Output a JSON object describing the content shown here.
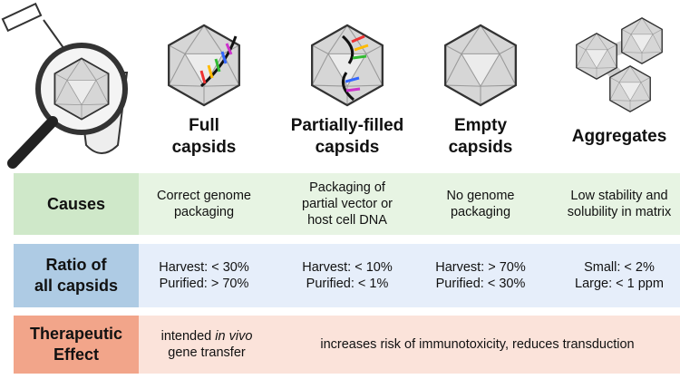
{
  "columns": [
    {
      "title": [
        "Full",
        "capsids"
      ]
    },
    {
      "title": [
        "Partially-filled",
        "capsids"
      ]
    },
    {
      "title": [
        "Empty",
        "capsids"
      ]
    },
    {
      "title": [
        "Aggregates"
      ]
    }
  ],
  "rows": [
    {
      "label": [
        "Causes"
      ],
      "cells": [
        [
          "Correct genome",
          "packaging"
        ],
        [
          "Packaging of",
          "partial vector or",
          "host cell DNA"
        ],
        [
          "No genome",
          "packaging"
        ],
        [
          "Low stability and",
          "solubility in matrix"
        ]
      ]
    },
    {
      "label": [
        "Ratio of",
        "all capsids"
      ],
      "cells": [
        [
          "Harvest: < 30%",
          "Purified: > 70%"
        ],
        [
          "Harvest: < 10%",
          "Purified: < 1%"
        ],
        [
          "Harvest: > 70%",
          "Purified: < 30%"
        ],
        [
          "Small: < 2%",
          "Large: < 1 ppm"
        ]
      ]
    }
  ],
  "therapeutic": {
    "label": [
      "Therapeutic",
      "Effect"
    ],
    "full": {
      "pre": "intended",
      "italic": "in vivo",
      "post": "gene transfer"
    },
    "others": "increases risk of immunotoxicity, reduces transduction"
  }
}
